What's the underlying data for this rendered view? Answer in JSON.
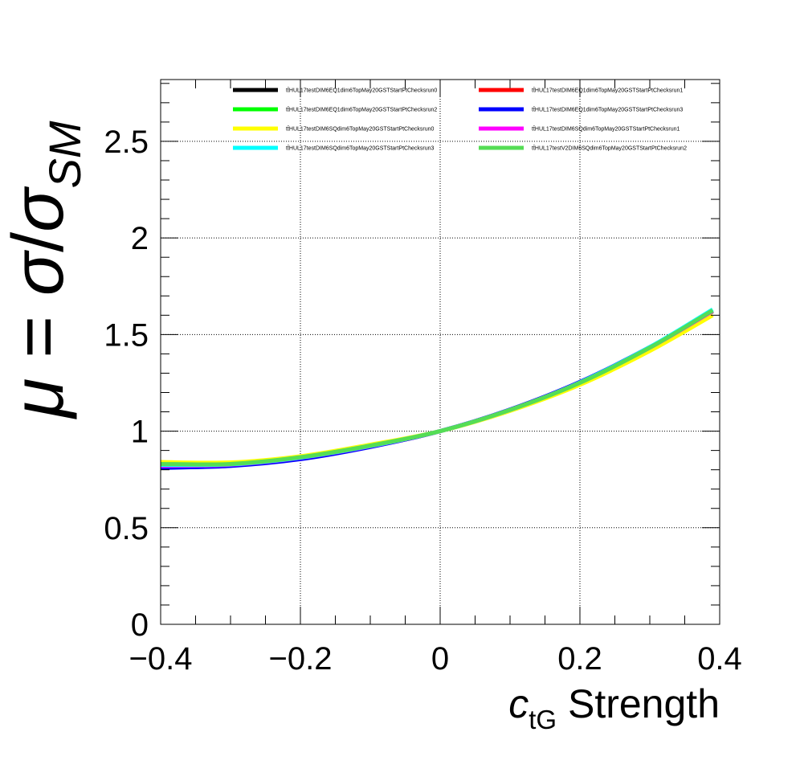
{
  "chart_data": {
    "type": "line",
    "xlabel": {
      "main": "c",
      "sub": "tG",
      "rest": " Strength"
    },
    "ylabel": {
      "mu": "μ",
      "eq": " = ",
      "sigma": "σ",
      "slash": "/",
      "sigma2": "σ",
      "sub": "SM"
    },
    "xlim": [
      -0.4,
      0.4
    ],
    "ylim": [
      0,
      2.82
    ],
    "x_ticks": [
      -0.4,
      -0.2,
      0,
      0.2,
      0.4
    ],
    "x_tick_labels": [
      "−0.4",
      "−0.2",
      "0",
      "0.2",
      "0.4"
    ],
    "y_ticks": [
      0,
      0.5,
      1,
      1.5,
      2,
      2.5
    ],
    "y_tick_labels": [
      "0",
      "0.5",
      "1",
      "1.5",
      "2",
      "2.5"
    ],
    "grid": true,
    "legend_position": "top-right",
    "x": [
      -0.4,
      -0.3,
      -0.2,
      -0.1,
      0,
      0.1,
      0.2,
      0.3,
      0.39
    ],
    "series": [
      {
        "name": "tt̄HUL17testDIM6EQ1dim6TopMay20GSTStartPtChecksrun0",
        "color": "#000000",
        "values": [
          0.82,
          0.825,
          0.86,
          0.92,
          1.0,
          1.11,
          1.25,
          1.43,
          1.62
        ]
      },
      {
        "name": "tt̄HUL17testDIM6EQ1dim6TopMay20GSTStartPtChecksrun1",
        "color": "#ff0000",
        "values": [
          0.82,
          0.826,
          0.86,
          0.92,
          1.0,
          1.11,
          1.25,
          1.43,
          1.62
        ]
      },
      {
        "name": "tt̄HUL17testDIM6EQ1dim6TopMay20GSTStartPtChecksrun2",
        "color": "#00ff00",
        "values": [
          0.83,
          0.83,
          0.865,
          0.925,
          1.0,
          1.11,
          1.25,
          1.43,
          1.62
        ]
      },
      {
        "name": "tt̄HUL17testDIM6EQ1dim6TopMay20GSTStartPtChecksrun3",
        "color": "#0000ff",
        "values": [
          0.81,
          0.82,
          0.855,
          0.918,
          1.0,
          1.112,
          1.255,
          1.435,
          1.625
        ]
      },
      {
        "name": "tt̄HUL17testDIM6SQdim6TopMay20GSTStartPtChecksrun0",
        "color": "#ffff00",
        "values": [
          0.84,
          0.838,
          0.87,
          0.93,
          1.0,
          1.105,
          1.24,
          1.415,
          1.6
        ]
      },
      {
        "name": "tt̄HUL17testDIM6SQdim6TopMay20GSTStartPtChecksrun1",
        "color": "#ff00ff",
        "values": [
          0.82,
          0.826,
          0.862,
          0.922,
          1.0,
          1.11,
          1.252,
          1.432,
          1.622
        ]
      },
      {
        "name": "tt̄HUL17testDIM6SQdim6TopMay20GSTStartPtChecksrun3",
        "color": "#00ffff",
        "values": [
          0.825,
          0.828,
          0.863,
          0.923,
          1.0,
          1.11,
          1.252,
          1.435,
          1.63
        ]
      },
      {
        "name": "tt̄HUL17testV2DIM6SQdim6TopMay20GSTStartPtChecksrun2",
        "color": "#55dd55",
        "values": [
          0.83,
          0.83,
          0.865,
          0.925,
          1.0,
          1.11,
          1.25,
          1.432,
          1.625
        ]
      }
    ]
  }
}
